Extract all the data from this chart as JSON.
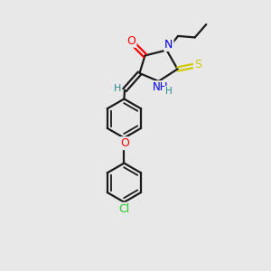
{
  "background_color": "#e8e8e8",
  "bond_color": "#1a1a1a",
  "atom_colors": {
    "O": "#ff0000",
    "N": "#0000ee",
    "S": "#cccc00",
    "Cl": "#22cc22",
    "H": "#2a8a8a",
    "C": "#1a1a1a"
  },
  "figsize": [
    3.0,
    3.0
  ],
  "dpi": 100,
  "xlim": [
    0,
    10
  ],
  "ylim": [
    0,
    10
  ]
}
